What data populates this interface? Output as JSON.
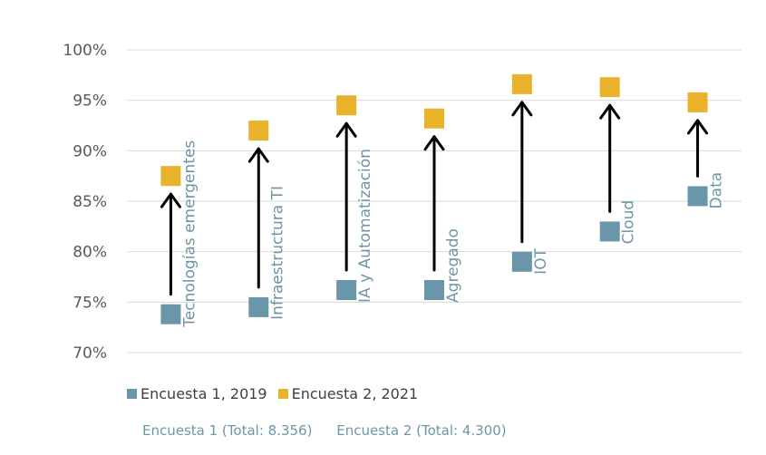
{
  "chart_data": {
    "type": "scatter",
    "categories": [
      "Tecnologías emergentes",
      "Infraestructura TI",
      "IA y Automatización",
      "Agregado",
      "IOT",
      "Cloud",
      "Data"
    ],
    "series": [
      {
        "name": "Encuesta 1, 2019",
        "color": "#6996a8",
        "values": [
          73.8,
          74.5,
          76.2,
          76.2,
          79.0,
          82.0,
          85.5
        ]
      },
      {
        "name": "Encuesta 2, 2021",
        "color": "#e8b22a",
        "values": [
          87.5,
          92.0,
          94.5,
          93.2,
          96.6,
          96.3,
          94.8
        ]
      }
    ],
    "yticks": [
      "70%",
      "75%",
      "80%",
      "85%",
      "90%",
      "95%",
      "100%"
    ],
    "ylim": [
      70,
      100
    ],
    "annotation": "arrows from 2019 value to 2021 value"
  },
  "footnote": {
    "survey1": "Encuesta 1 (Total: 8.356)",
    "survey2": "Encuesta 2 (Total: 4.300)"
  }
}
